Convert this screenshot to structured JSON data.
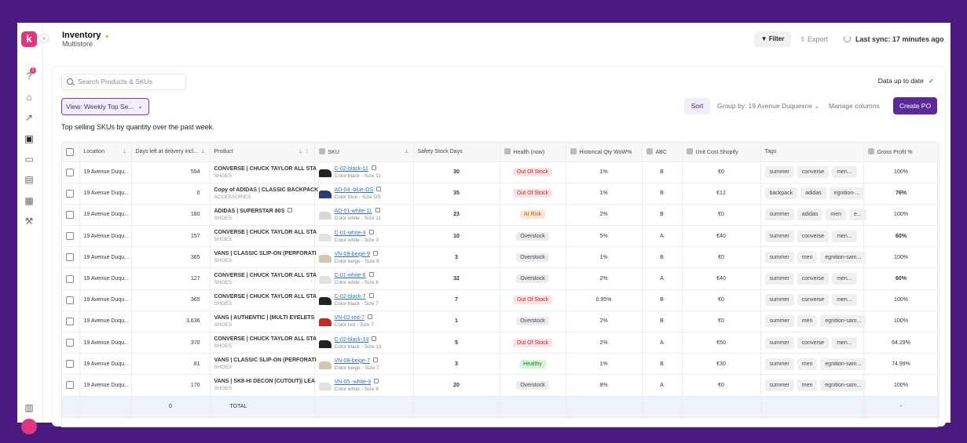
{
  "app": {
    "logo_letter": "k",
    "title": "Inventory",
    "subtitle": "Multistore",
    "notification_count": "1"
  },
  "header": {
    "filter_label": "Filter",
    "export_label": "Export",
    "sync_label": "Last sync: 17 minutes ago"
  },
  "toolbar": {
    "search_placeholder": "Search Products & SKUs",
    "status": "Data up to date",
    "view_label": "View: Weekly Top Se...",
    "sort_label": "Sort",
    "group_by_label": "Group by: 19 Avenue Duquesne",
    "manage_columns_label": "Manage columns",
    "create_po_label": "Create PO",
    "description": "Top selling SKUs by quantity over the past week."
  },
  "columns": {
    "location": "Location",
    "days_left": "Days left at delivery incl...",
    "product": "Product",
    "sku": "SKU",
    "safety_stock": "Safety Stock Days",
    "health": "Health (now)",
    "historical": "Historical Qty WoW%",
    "abc": "ABC",
    "unit_cost": "Unit Cost Shopify",
    "tags": "Tags",
    "gross_profit": "Gross Profit %"
  },
  "colors": {
    "brand": "#e0367d",
    "primary": "#5b2a9a",
    "link": "#2f6fd6",
    "out_of_stock": "#c62828",
    "at_risk": "#b25e09",
    "healthy": "#1f7a2e"
  },
  "rows": [
    {
      "location": "19 Avenue Duqu...",
      "days_left": "554",
      "product": "CONVERSE | CHUCK TAYLOR ALL STA",
      "category": "SHOES",
      "sku": "C-02-black-11",
      "variant": "Color black - Size 11",
      "shoe_color": "#222222",
      "safety": "30",
      "health": "Out Of Stock",
      "health_kind": "out",
      "wow": "1%",
      "abc": "B",
      "cost": "€0",
      "tags": [
        "summer",
        "converse",
        "men..."
      ],
      "gp": "100%",
      "gp_bold": false
    },
    {
      "location": "19 Avenue Duqu...",
      "days_left": "0",
      "product": "Copy of ADIDAS | CLASSIC BACKPACK",
      "category": "ACCESSORIES",
      "sku": "AD-04 -blue-OS",
      "variant": "Color blue - Size OS",
      "shoe_color": "#2c3e78",
      "safety": "35",
      "health": "Out Of Stock",
      "health_kind": "out",
      "wow": "1%",
      "abc": "B",
      "cost": "€12",
      "tags": [
        "backpack",
        "adidas",
        "egnition-..."
      ],
      "gp": "76%",
      "gp_bold": true
    },
    {
      "location": "19 Avenue Duqu...",
      "days_left": "180",
      "product": "ADIDAS | SUPERSTAR 80S",
      "category": "SHOES",
      "sku": "AD-01-white-11",
      "variant": "Color white - Size 11",
      "shoe_color": "#d8d8d8",
      "safety": "23",
      "health": "At Risk",
      "health_kind": "risk",
      "wow": "2%",
      "abc": "B",
      "cost": "€0",
      "tags": [
        "summer",
        "adidas",
        "men",
        "e..."
      ],
      "gp": "100%",
      "gp_bold": false
    },
    {
      "location": "19 Avenue Duqu...",
      "days_left": "157",
      "product": "CONVERSE | CHUCK TAYLOR ALL STA",
      "category": "SHOES",
      "sku": "C-01-white-3",
      "variant": "Color white - Size 3",
      "shoe_color": "#e2e2e2",
      "safety": "10",
      "health": "Overstock",
      "health_kind": "over",
      "wow": "5%",
      "abc": "A",
      "cost": "€40",
      "tags": [
        "summer",
        "converse",
        "men..."
      ],
      "gp": "60%",
      "gp_bold": true
    },
    {
      "location": "19 Avenue Duqu...",
      "days_left": "365",
      "product": "VANS | CLASSIC SLIP-ON (PERFORATI",
      "category": "SHOES",
      "sku": "VN-09-beige-9",
      "variant": "Color beige - Size 9",
      "shoe_color": "#cfc6b4",
      "safety": "3",
      "health": "Overstock",
      "health_kind": "over",
      "wow": "1%",
      "abc": "B",
      "cost": "€0",
      "tags": [
        "summer",
        "men",
        "egnition-sam..."
      ],
      "gp": "100%",
      "gp_bold": false
    },
    {
      "location": "19 Avenue Duqu...",
      "days_left": "127",
      "product": "CONVERSE | CHUCK TAYLOR ALL STA",
      "category": "SHOES",
      "sku": "C-01-white-6",
      "variant": "Color white - Size 6",
      "shoe_color": "#e2e2e2",
      "safety": "32",
      "health": "Overstock",
      "health_kind": "over",
      "wow": "2%",
      "abc": "A",
      "cost": "€40",
      "tags": [
        "summer",
        "converse",
        "men..."
      ],
      "gp": "60%",
      "gp_bold": true
    },
    {
      "location": "19 Avenue Duqu...",
      "days_left": "365",
      "product": "CONVERSE | CHUCK TAYLOR ALL STA",
      "category": "SHOES",
      "sku": "C-02-black-7",
      "variant": "Color black - Size 7",
      "shoe_color": "#222222",
      "safety": "7",
      "health": "Out Of Stock",
      "health_kind": "out",
      "wow": "0.95%",
      "abc": "B",
      "cost": "€0",
      "tags": [
        "summer",
        "converse",
        "men..."
      ],
      "gp": "100%",
      "gp_bold": false
    },
    {
      "location": "19 Avenue Duqu...",
      "days_left": "3,636",
      "product": "VANS | AUTHENTIC | (MULTI EYELETS",
      "category": "SHOES",
      "sku": "VN-02-red-7",
      "variant": "Color red - Size 7",
      "shoe_color": "#c62828",
      "safety": "1",
      "health": "Overstock",
      "health_kind": "over",
      "wow": "2%",
      "abc": "B",
      "cost": "€0",
      "tags": [
        "summer",
        "men",
        "egnition-sam..."
      ],
      "gp": "100%",
      "gp_bold": false
    },
    {
      "location": "19 Avenue Duqu...",
      "days_left": "370",
      "product": "CONVERSE | CHUCK TAYLOR ALL STA",
      "category": "SHOES",
      "sku": "C-02-black-13",
      "variant": "Color black - Size 13",
      "shoe_color": "#222222",
      "safety": "5",
      "health": "Out Of Stock",
      "health_kind": "out",
      "wow": "2%",
      "abc": "A",
      "cost": "€50",
      "tags": [
        "summer",
        "converse",
        "men..."
      ],
      "gp": "64.29%",
      "gp_bold": false
    },
    {
      "location": "19 Avenue Duqu...",
      "days_left": "81",
      "product": "VANS | CLASSIC SLIP-ON (PERFORATI",
      "category": "SHOES",
      "sku": "VN-09-beige-7",
      "variant": "Color beige - Size 7",
      "shoe_color": "#cfc6b4",
      "safety": "3",
      "health": "Healthy",
      "health_kind": "healthy",
      "wow": "1%",
      "abc": "B",
      "cost": "€30",
      "tags": [
        "summer",
        "men",
        "egnition-sam..."
      ],
      "gp": "74.99%",
      "gp_bold": false
    },
    {
      "location": "19 Avenue Duqu...",
      "days_left": "170",
      "product": "VANS | SK8-HI DECON (CUTOUT)| LEA",
      "category": "SHOES",
      "sku": "VN-05 -white-9",
      "variant": "Color white - Size 9",
      "shoe_color": "#e2e2e2",
      "safety": "20",
      "health": "Overstock",
      "health_kind": "over",
      "wow": "8%",
      "abc": "A",
      "cost": "€0",
      "tags": [
        "summer",
        "men",
        "egnition-sam..."
      ],
      "gp": "100%",
      "gp_bold": false
    }
  ],
  "total": {
    "days_left": "0",
    "label": "TOTAL",
    "gross_profit": "-"
  }
}
